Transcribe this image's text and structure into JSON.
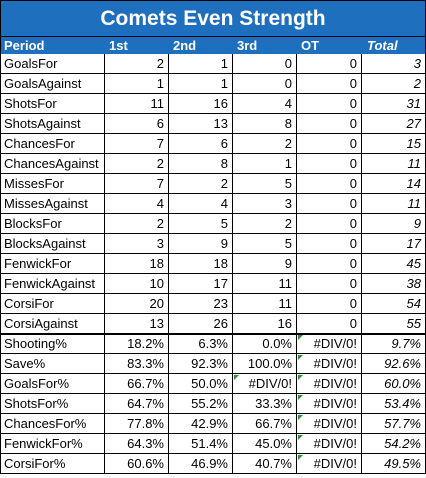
{
  "title": "Comets Even Strength",
  "header": [
    "Period",
    "1st",
    "2nd",
    "3rd",
    "OT",
    "Total"
  ],
  "count_rows": [
    {
      "label": "GoalsFor",
      "values": [
        "2",
        "1",
        "0",
        "0",
        "3"
      ]
    },
    {
      "label": "GoalsAgainst",
      "values": [
        "1",
        "1",
        "0",
        "0",
        "2"
      ]
    },
    {
      "label": "ShotsFor",
      "values": [
        "11",
        "16",
        "4",
        "0",
        "31"
      ]
    },
    {
      "label": "ShotsAgainst",
      "values": [
        "6",
        "13",
        "8",
        "0",
        "27"
      ]
    },
    {
      "label": "ChancesFor",
      "values": [
        "7",
        "6",
        "2",
        "0",
        "15"
      ]
    },
    {
      "label": "ChancesAgainst",
      "values": [
        "2",
        "8",
        "1",
        "0",
        "11"
      ]
    },
    {
      "label": "MissesFor",
      "values": [
        "7",
        "2",
        "5",
        "0",
        "14"
      ]
    },
    {
      "label": "MissesAgainst",
      "values": [
        "4",
        "4",
        "3",
        "0",
        "11"
      ]
    },
    {
      "label": "BlocksFor",
      "values": [
        "2",
        "5",
        "2",
        "0",
        "9"
      ]
    },
    {
      "label": "BlocksAgainst",
      "values": [
        "3",
        "9",
        "5",
        "0",
        "17"
      ]
    },
    {
      "label": "FenwickFor",
      "values": [
        "18",
        "18",
        "9",
        "0",
        "45"
      ]
    },
    {
      "label": "FenwickAgainst",
      "values": [
        "10",
        "17",
        "11",
        "0",
        "38"
      ]
    },
    {
      "label": "CorsiFor",
      "values": [
        "20",
        "23",
        "11",
        "0",
        "54"
      ]
    },
    {
      "label": "CorsiAgainst",
      "values": [
        "13",
        "26",
        "16",
        "0",
        "55"
      ]
    }
  ],
  "pct_rows": [
    {
      "label": "Shooting%",
      "values": [
        "18.2%",
        "6.3%",
        "0.0%",
        "#DIV/0!",
        "9.7%"
      ]
    },
    {
      "label": "Save%",
      "values": [
        "83.3%",
        "92.3%",
        "100.0%",
        "#DIV/0!",
        "92.6%"
      ]
    },
    {
      "label": "GoalsFor%",
      "values": [
        "66.7%",
        "50.0%",
        "#DIV/0!",
        "#DIV/0!",
        "60.0%"
      ]
    },
    {
      "label": "ShotsFor%",
      "values": [
        "64.7%",
        "55.2%",
        "33.3%",
        "#DIV/0!",
        "53.4%"
      ]
    },
    {
      "label": "ChancesFor%",
      "values": [
        "77.8%",
        "42.9%",
        "66.7%",
        "#DIV/0!",
        "57.7%"
      ]
    },
    {
      "label": "FenwickFor%",
      "values": [
        "64.3%",
        "51.4%",
        "45.0%",
        "#DIV/0!",
        "54.2%"
      ]
    },
    {
      "label": "CorsiFor%",
      "values": [
        "60.6%",
        "46.9%",
        "40.7%",
        "#DIV/0!",
        "49.5%"
      ]
    }
  ],
  "colors": {
    "header_bg": "#1f6fbf",
    "header_text": "#ffffff",
    "error_flag": "#2e8b3a"
  }
}
